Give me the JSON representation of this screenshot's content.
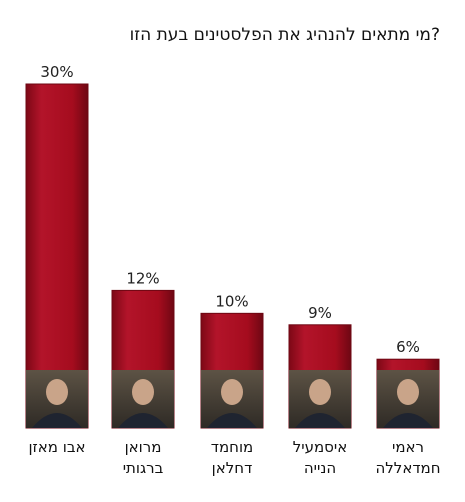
{
  "chart_data": {
    "type": "bar",
    "title": "מי מתאים להנהיג את הפלסטינים בעת הזו?",
    "categories": [
      [
        "אבו מאזן"
      ],
      [
        "מרואן",
        "ברגותי"
      ],
      [
        "מוחמד",
        "דחלאן"
      ],
      [
        "איסמעיל",
        "הנייה"
      ],
      [
        "ראמי",
        "חמדאללה"
      ]
    ],
    "values": [
      30,
      12,
      10,
      9,
      6
    ],
    "value_labels": [
      "30%",
      "12%",
      "10%",
      "9%",
      "6%"
    ],
    "ylim": [
      0,
      30
    ],
    "grid": false,
    "legend": "none"
  },
  "colors": {
    "bar": "#a50c1e",
    "bar_edge": "#6e0713",
    "bar_highlight": "#c81f33",
    "photo_bg": "#7a6a55"
  },
  "icons": [
    "portrait-photo-icon"
  ]
}
